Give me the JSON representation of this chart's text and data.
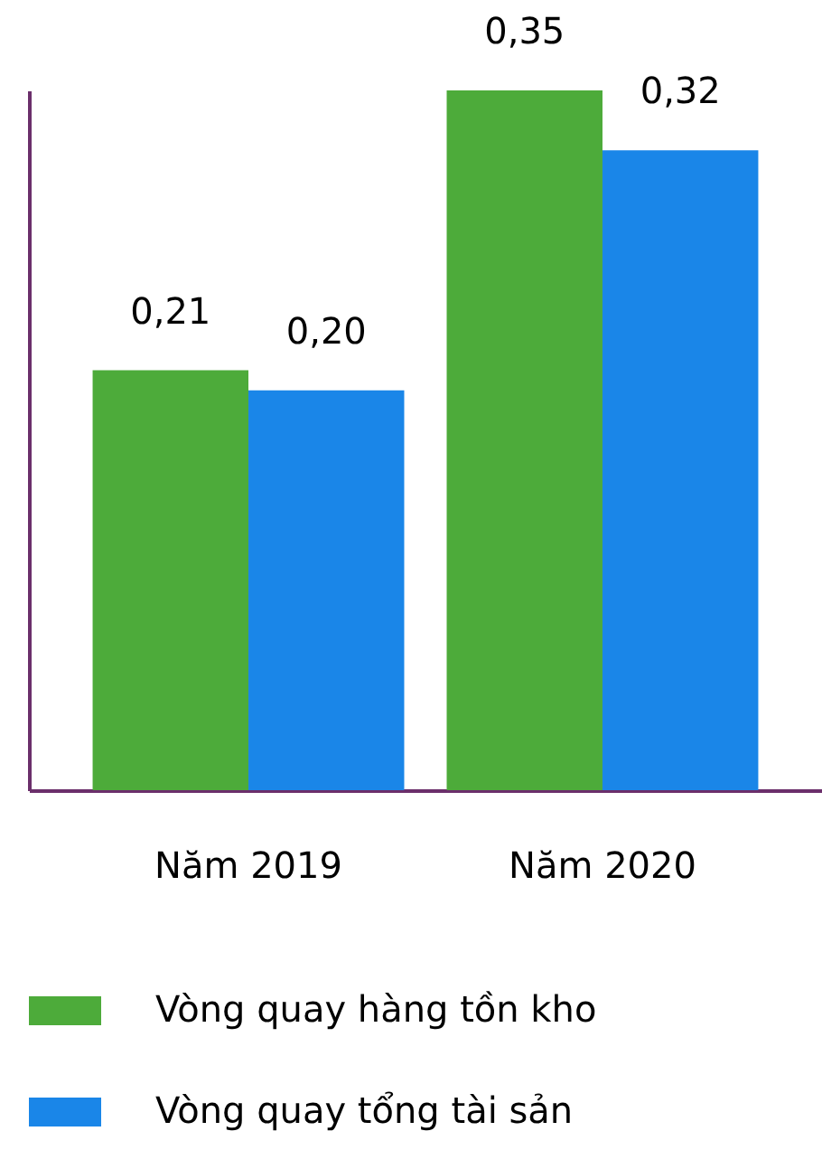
{
  "chart_data": {
    "type": "bar",
    "categories": [
      "Năm 2019",
      "Năm 2020"
    ],
    "series": [
      {
        "name": "Vòng quay hàng tồn kho",
        "color": "#4dab3a",
        "values": [
          0.21,
          0.35
        ],
        "value_labels": [
          "0,21",
          "0,35"
        ]
      },
      {
        "name": "Vòng quay tổng tài sản",
        "color": "#1a86e8",
        "values": [
          0.2,
          0.32
        ],
        "value_labels": [
          "0,20",
          "0,32"
        ]
      }
    ],
    "legend": "bottom",
    "tick_labels": "x",
    "grid": false
  }
}
